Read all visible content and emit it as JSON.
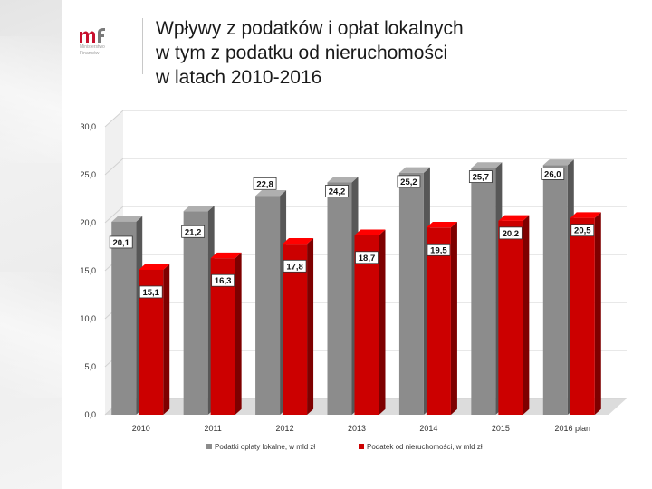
{
  "header": {
    "title_lines": [
      "Wpływy z podatków i opłat lokalnych",
      "w tym z podatku od nieruchomości",
      "w latach 2010-2016"
    ]
  },
  "logo": {
    "name_lines": [
      "Ministerstwo",
      "Finansów"
    ]
  },
  "colors": {
    "gray_bar": "#8c8c8c",
    "red_bar": "#cc0000",
    "title": "#1a1a1a"
  },
  "chart_data": {
    "type": "bar",
    "style": "3d-clustered",
    "categories": [
      "2010",
      "2011",
      "2012",
      "2013",
      "2014",
      "2015",
      "2016 plan"
    ],
    "series": [
      {
        "name": "Podatki oplaty lokalne, w mld zł",
        "color": "#8c8c8c",
        "values": [
          20.1,
          21.2,
          22.8,
          24.2,
          25.2,
          25.7,
          26.0
        ],
        "labels": [
          "20,1",
          "21,2",
          "22,8",
          "24,2",
          "25,2",
          "25,7",
          "26,0"
        ]
      },
      {
        "name": "Podatek od nieruchomości, w mld zł",
        "color": "#cc0000",
        "values": [
          15.1,
          16.3,
          17.8,
          18.7,
          19.5,
          20.2,
          20.5
        ],
        "labels": [
          "15,1",
          "16,3",
          "17,8",
          "18,7",
          "19,5",
          "20,2",
          "20,5"
        ]
      }
    ],
    "ylim": [
      0,
      30
    ],
    "yticks": [
      0,
      5,
      10,
      15,
      20,
      25,
      30
    ],
    "ytick_labels": [
      "0,0",
      "5,0",
      "10,0",
      "15,0",
      "20,0",
      "25,0",
      "30,0"
    ],
    "grid": true,
    "legend": "bottom"
  }
}
